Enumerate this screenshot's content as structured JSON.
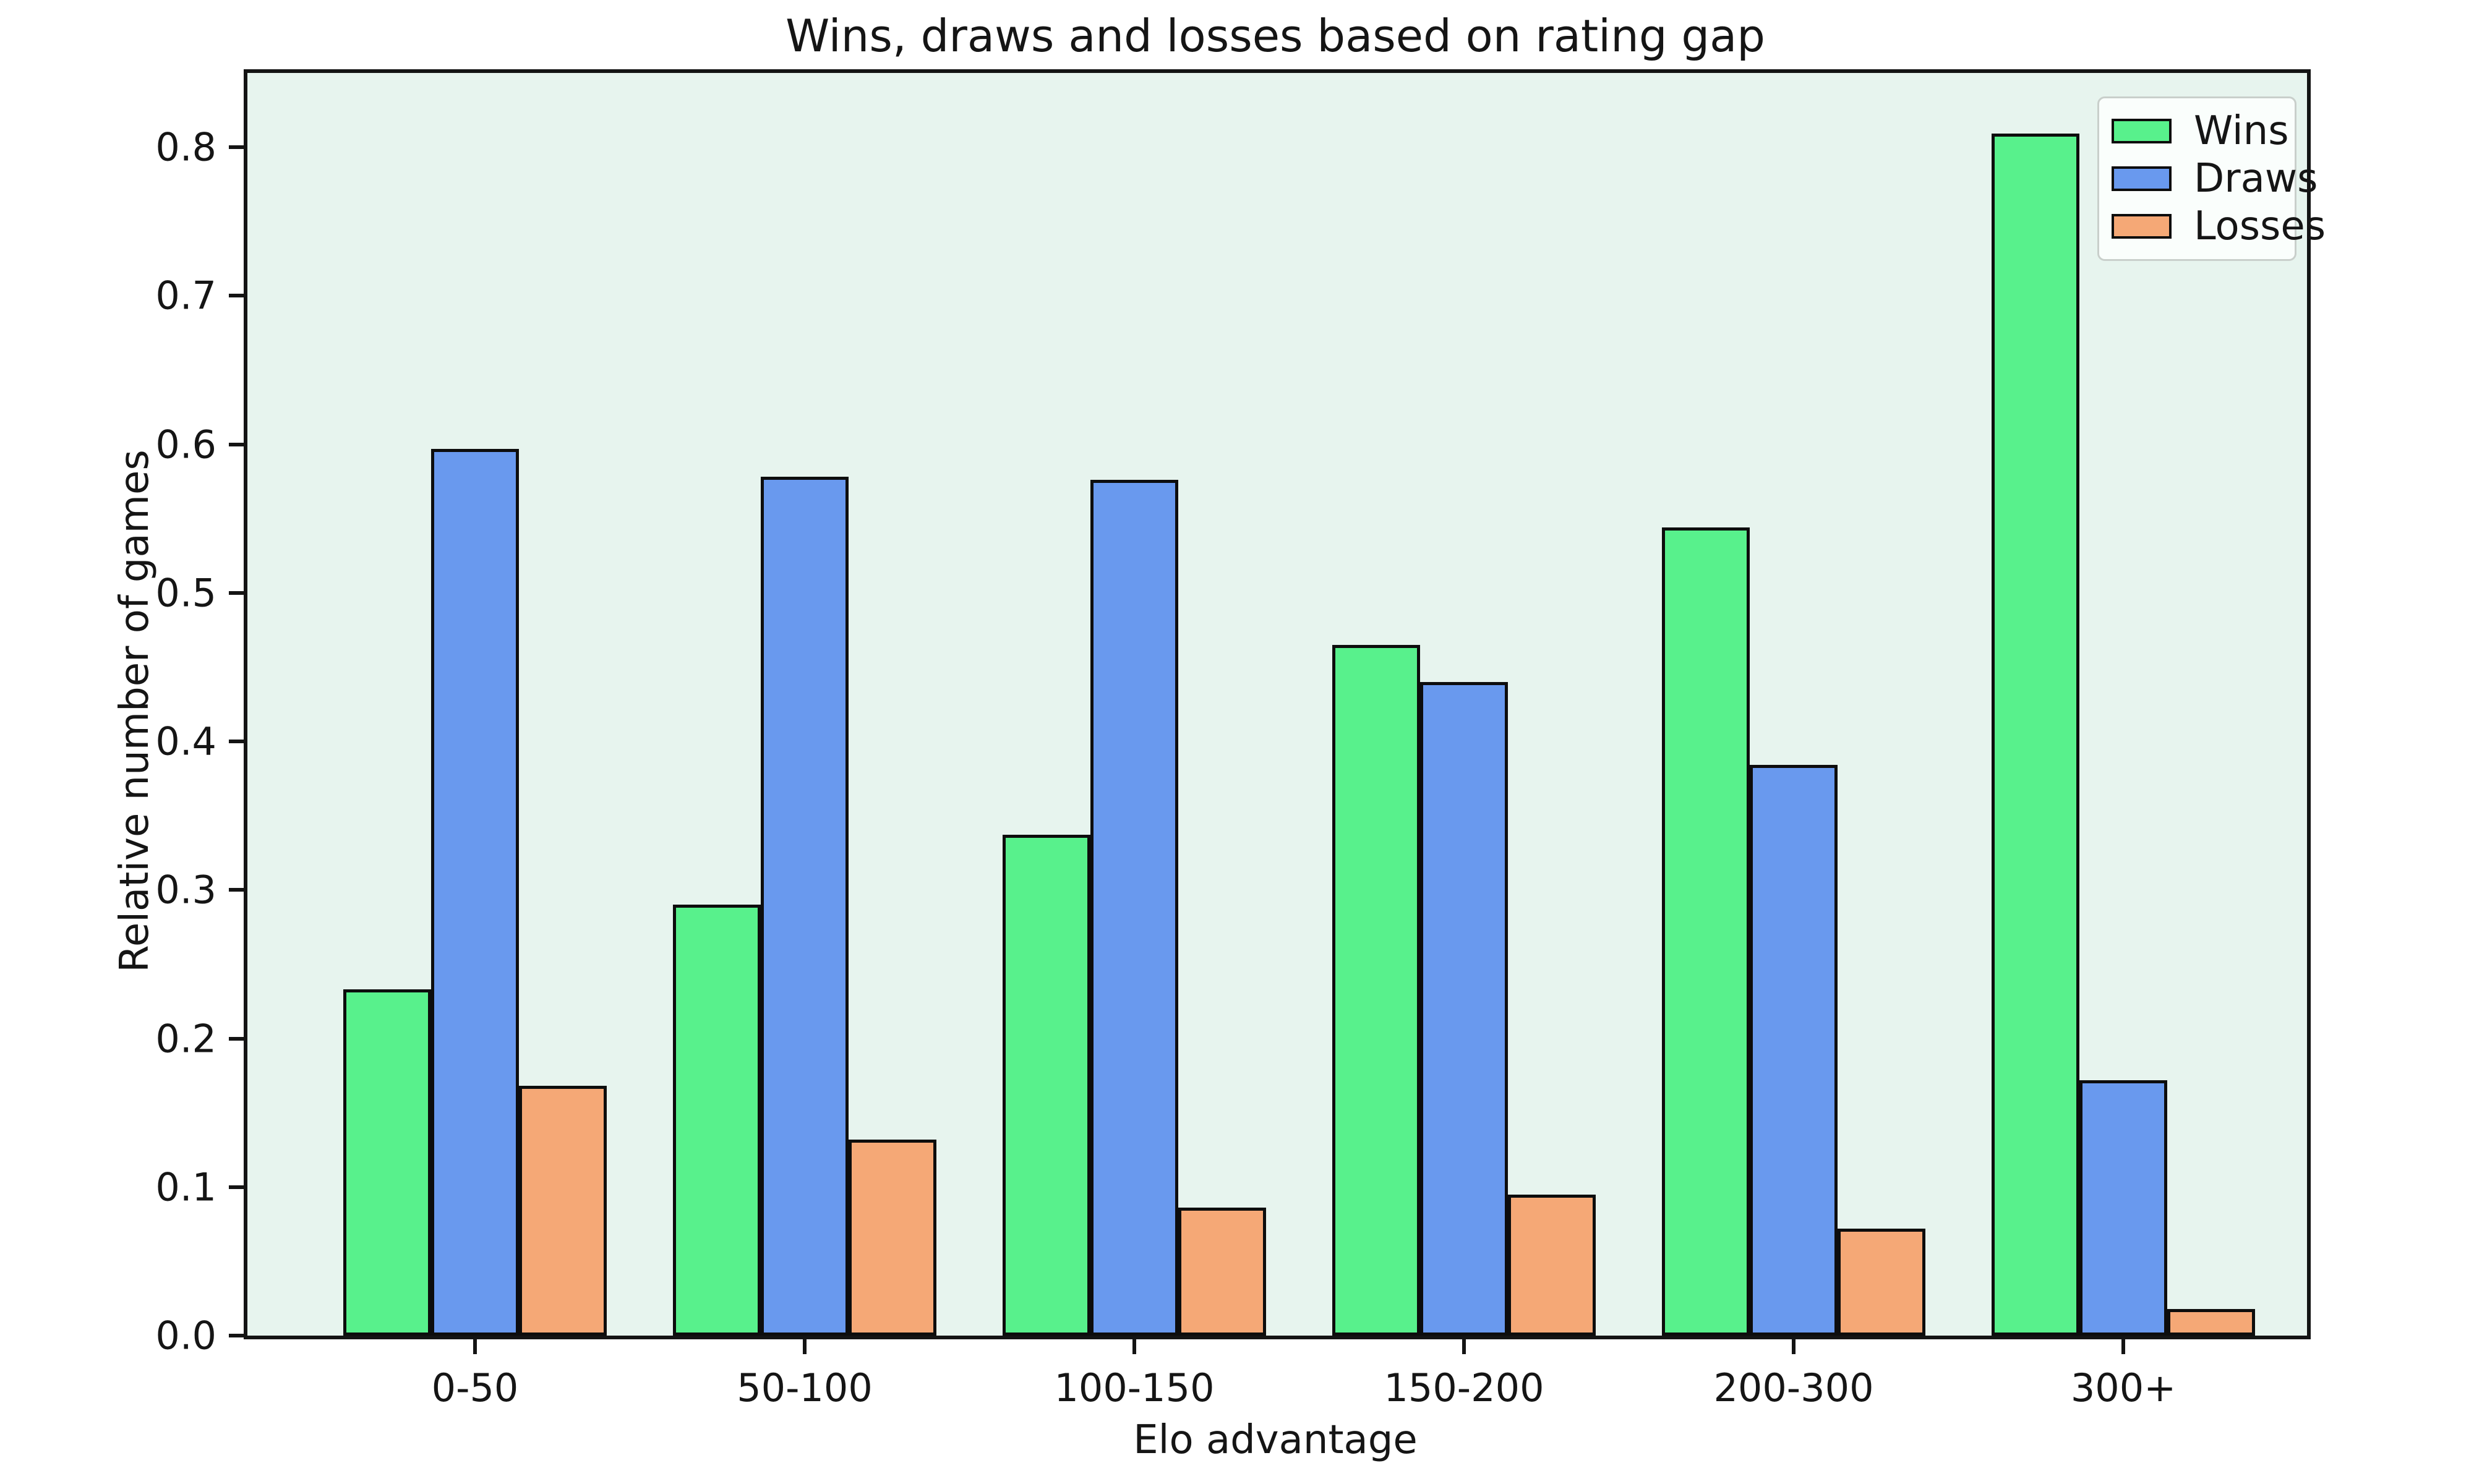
{
  "figure": {
    "title": "Wins, draws and losses based on rating gap"
  },
  "chart_data": {
    "type": "bar",
    "title": "Wins, draws and losses based on rating gap",
    "xlabel": "Elo advantage",
    "ylabel": "Relative number of games",
    "categories": [
      "0-50",
      "50-100",
      "100-150",
      "150-200",
      "200-300",
      "300+"
    ],
    "series": [
      {
        "name": "Wins",
        "color": "#58F18C",
        "values": [
          0.233,
          0.29,
          0.337,
          0.465,
          0.544,
          0.809
        ]
      },
      {
        "name": "Draws",
        "color": "#6999EE",
        "values": [
          0.597,
          0.578,
          0.576,
          0.44,
          0.384,
          0.172
        ]
      },
      {
        "name": "Losses",
        "color": "#F5A876",
        "values": [
          0.168,
          0.132,
          0.086,
          0.095,
          0.072,
          0.018
        ]
      }
    ],
    "ylim": [
      0,
      0.85
    ],
    "yticks": [
      0.0,
      0.1,
      0.2,
      0.3,
      0.4,
      0.5,
      0.6,
      0.7,
      0.8
    ],
    "ytick_labels": [
      "0.0",
      "0.1",
      "0.2",
      "0.3",
      "0.4",
      "0.5",
      "0.6",
      "0.7",
      "0.8"
    ],
    "grid": false,
    "legend_position": "upper right",
    "plot_background": "#E7F4EE",
    "bar_edge_color": "#0d0d0d"
  }
}
